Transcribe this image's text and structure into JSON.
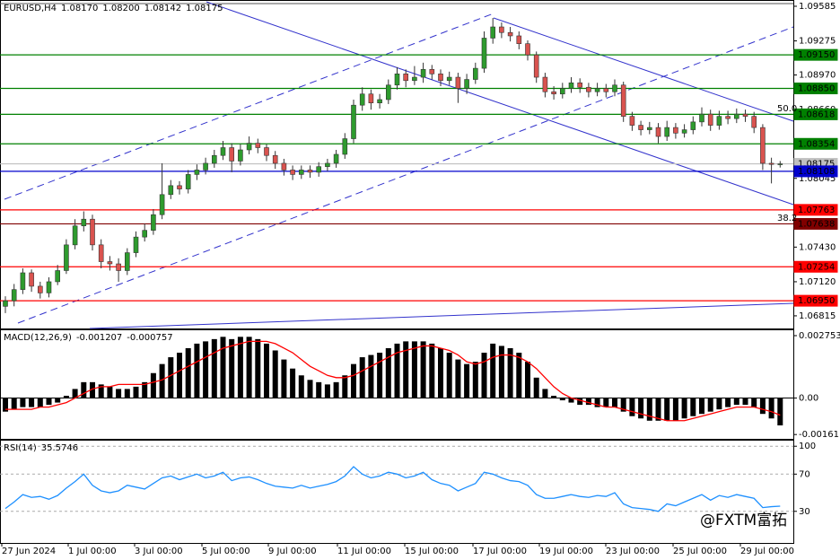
{
  "chart_data": [
    {
      "type": "candlestick",
      "title": "EURUSD,H4",
      "ohlc_labels": [
        "1.08170",
        "1.08200",
        "1.08142",
        "1.08175"
      ],
      "open": [
        1.069,
        1.0695,
        1.0705,
        1.072,
        1.0708,
        1.0702,
        1.0712,
        1.0722,
        1.0745,
        1.0762,
        1.0768,
        1.0745,
        1.073,
        1.0728,
        1.0722,
        1.0738,
        1.0752,
        1.0758,
        1.0772,
        1.079,
        1.0798,
        1.0795,
        1.0808,
        1.0812,
        1.0818,
        1.0825,
        1.0832,
        1.082,
        1.083,
        1.0836,
        1.0832,
        1.0825,
        1.0818,
        1.0812,
        1.0808,
        1.0812,
        1.081,
        1.0815,
        1.0818,
        1.0826,
        1.084,
        1.087,
        1.088,
        1.0872,
        1.0875,
        1.0888,
        1.0898,
        1.0892,
        1.0895,
        1.0902,
        1.0898,
        1.0892,
        1.0895,
        1.0885,
        1.0893,
        1.0903,
        1.093,
        1.094,
        1.0935,
        1.0932,
        1.0925,
        1.0915,
        1.0895,
        1.0882,
        1.088,
        1.0885,
        1.089,
        1.0886,
        1.0882,
        1.0885,
        1.0882,
        1.0888,
        1.086,
        1.0852,
        1.0848,
        1.085,
        1.0842,
        1.085,
        1.0845,
        1.0848,
        1.0855,
        1.0862,
        1.0852,
        1.086,
        1.0858,
        1.0862,
        1.086,
        1.085,
        1.0818,
        1.0817
      ],
      "high": [
        1.0699,
        1.071,
        1.0724,
        1.0723,
        1.0712,
        1.0716,
        1.0727,
        1.075,
        1.0768,
        1.0775,
        1.0772,
        1.075,
        1.0735,
        1.0733,
        1.0742,
        1.0757,
        1.0764,
        1.0777,
        1.0818,
        1.0803,
        1.0802,
        1.0812,
        1.0817,
        1.0823,
        1.083,
        1.0838,
        1.0836,
        1.0835,
        1.0842,
        1.084,
        1.0835,
        1.0829,
        1.0822,
        1.0816,
        1.0816,
        1.0816,
        1.0819,
        1.0822,
        1.083,
        1.0845,
        1.0875,
        1.0886,
        1.0884,
        1.088,
        1.0893,
        1.0904,
        1.0902,
        1.0905,
        1.0908,
        1.0906,
        1.0902,
        1.09,
        1.0899,
        1.0898,
        1.0908,
        1.0936,
        1.0948,
        1.0944,
        1.094,
        1.0936,
        1.0928,
        1.0918,
        1.0899,
        1.0887,
        1.089,
        1.0895,
        1.0894,
        1.089,
        1.089,
        1.0889,
        1.0893,
        1.0891,
        1.0864,
        1.0856,
        1.0855,
        1.0854,
        1.0856,
        1.0854,
        1.0853,
        1.086,
        1.0868,
        1.0866,
        1.0865,
        1.0865,
        1.0867,
        1.0866,
        1.0864,
        1.0853,
        1.0823,
        1.082
      ],
      "low": [
        1.0684,
        1.069,
        1.0701,
        1.0703,
        1.0697,
        1.0698,
        1.0709,
        1.0719,
        1.0741,
        1.0757,
        1.074,
        1.0724,
        1.0722,
        1.0712,
        1.0718,
        1.0734,
        1.0748,
        1.0754,
        1.0768,
        1.0786,
        1.079,
        1.0791,
        1.0803,
        1.0808,
        1.0814,
        1.0821,
        1.081,
        1.0816,
        1.0826,
        1.0827,
        1.082,
        1.0813,
        1.0807,
        1.0803,
        1.0804,
        1.0805,
        1.0806,
        1.0811,
        1.0814,
        1.0822,
        1.0836,
        1.0865,
        1.0866,
        1.0867,
        1.0871,
        1.0884,
        1.0886,
        1.0888,
        1.089,
        1.0893,
        1.0887,
        1.0888,
        1.0872,
        1.088,
        1.0889,
        1.0899,
        1.0925,
        1.093,
        1.0927,
        1.092,
        1.091,
        1.089,
        1.0877,
        1.0875,
        1.0876,
        1.0881,
        1.0881,
        1.0877,
        1.0878,
        1.0877,
        1.0878,
        1.0855,
        1.0847,
        1.0843,
        1.0844,
        1.0836,
        1.0838,
        1.084,
        1.0841,
        1.0844,
        1.0851,
        1.0847,
        1.0848,
        1.0853,
        1.0854,
        1.0855,
        1.0845,
        1.0812,
        1.08,
        1.08142
      ],
      "close": [
        1.0695,
        1.0705,
        1.072,
        1.0708,
        1.0702,
        1.0712,
        1.0722,
        1.0745,
        1.0762,
        1.0768,
        1.0745,
        1.073,
        1.0728,
        1.0722,
        1.0738,
        1.0752,
        1.0758,
        1.0772,
        1.079,
        1.0798,
        1.0795,
        1.0808,
        1.0812,
        1.0818,
        1.0825,
        1.0832,
        1.082,
        1.083,
        1.0836,
        1.0832,
        1.0825,
        1.0818,
        1.0812,
        1.0808,
        1.0812,
        1.081,
        1.0815,
        1.0818,
        1.0826,
        1.084,
        1.087,
        1.088,
        1.0872,
        1.0875,
        1.0888,
        1.0898,
        1.0892,
        1.0895,
        1.0902,
        1.0898,
        1.0892,
        1.0895,
        1.0885,
        1.0893,
        1.0903,
        1.093,
        1.094,
        1.0935,
        1.0932,
        1.0925,
        1.0915,
        1.0895,
        1.0882,
        1.088,
        1.0885,
        1.089,
        1.0886,
        1.0882,
        1.0885,
        1.0882,
        1.0888,
        1.086,
        1.0852,
        1.0848,
        1.085,
        1.0842,
        1.085,
        1.0845,
        1.0848,
        1.0855,
        1.0862,
        1.0852,
        1.086,
        1.0858,
        1.0862,
        1.086,
        1.085,
        1.0818,
        1.0817,
        1.08175
      ],
      "up_color": "#2e9b2e",
      "down_color": "#d9534f",
      "ylim": [
        1.06702,
        1.09641
      ],
      "yticks": [
        1.09585,
        1.09275,
        {
          "value": 1.0897,
          "label": "1.08970"
        },
        {
          "value": 1.0866,
          "label": "1.08660"
        },
        1.08045,
        {
          "value": 1.0743,
          "label": "1.07430"
        },
        {
          "value": 1.0712,
          "label": "1.07120"
        },
        1.06815
      ],
      "levels": [
        {
          "value": 1.0915,
          "label": "1.09150",
          "color": "#008000",
          "label_color": "#ffffff"
        },
        {
          "value": 1.0885,
          "label": "1.08850",
          "color": "#008000",
          "label_color": "#ffffff"
        },
        {
          "value": 1.08618,
          "label": "1.08618",
          "color": "#008000",
          "label_color": "#ffffff"
        },
        {
          "value": 1.08354,
          "label": "1.08354",
          "color": "#008000",
          "label_color": "#ffffff"
        },
        {
          "value": 1.08175,
          "label": "1.08175",
          "color": "#c0c0c0",
          "label_color": "#000000"
        },
        {
          "value": 1.08108,
          "label": "1.08108",
          "color": "#0000cd",
          "label_color": "#ffffff"
        },
        {
          "value": 1.07763,
          "label": "1.07763",
          "color": "#ff0000",
          "label_color": "#ffffff"
        },
        {
          "value": 1.07638,
          "label": "1.07638",
          "color": "#800000",
          "label_color": "#ffffff"
        },
        {
          "value": 1.07254,
          "label": "1.07254",
          "color": "#ff0000",
          "label_color": "#ffffff"
        },
        {
          "value": 1.0695,
          "label": "1.06950",
          "color": "#ff0000",
          "label_color": "#ffffff"
        }
      ],
      "annotations": [
        "50.0",
        "38.2"
      ],
      "xtick_labels": [
        "27 Jun 2024",
        "1 Jul 00:00",
        "3 Jul 00:00",
        "5 Jul 00:00",
        "9 Jul 00:00",
        "11 Jul 00:00",
        "15 Jul 00:00",
        "17 Jul 00:00",
        "19 Jul 00:00",
        "23 Jul 00:00",
        "25 Jul 00:00",
        "29 Jul 00:00"
      ],
      "watermark": "@FXTM富拓"
    },
    {
      "type": "macd",
      "title": "MACD(12,26,9)",
      "series": [
        {
          "name": "histogram",
          "color": "#000000",
          "values": [
            -0.0006,
            -0.0005,
            -0.0004,
            -0.0004,
            -0.0004,
            -0.0003,
            -0.0002,
            0.0001,
            0.0004,
            0.0007,
            0.0007,
            0.0006,
            0.0005,
            0.0004,
            0.0004,
            0.0005,
            0.0007,
            0.0011,
            0.0015,
            0.0018,
            0.002,
            0.0022,
            0.0024,
            0.0025,
            0.0026,
            0.0027,
            0.0026,
            0.0027,
            0.0027,
            0.0026,
            0.0024,
            0.0021,
            0.0017,
            0.0013,
            0.001,
            0.0008,
            0.0007,
            0.0006,
            0.0007,
            0.001,
            0.0015,
            0.0018,
            0.0019,
            0.002,
            0.0022,
            0.0024,
            0.0025,
            0.0025,
            0.0025,
            0.0024,
            0.0022,
            0.002,
            0.0017,
            0.0015,
            0.0016,
            0.002,
            0.0024,
            0.0023,
            0.0022,
            0.002,
            0.0016,
            0.0009,
            0.0004,
            0.0001,
            -0.0001,
            -0.0002,
            -0.0003,
            -0.0003,
            -0.0004,
            -0.0004,
            -0.0004,
            -0.0006,
            -0.0008,
            -0.0009,
            -0.001,
            -0.001,
            -0.001,
            -0.001,
            -0.0009,
            -0.0008,
            -0.0007,
            -0.0006,
            -0.0005,
            -0.0004,
            -0.0003,
            -0.0003,
            -0.0004,
            -0.0007,
            -0.0009,
            -0.001207
          ]
        },
        {
          "name": "signal",
          "color": "#ff0000",
          "values": [
            -0.0005,
            -0.0005,
            -0.0005,
            -0.0005,
            -0.0004,
            -0.0004,
            -0.0003,
            -0.0002,
            0.0,
            0.0002,
            0.0004,
            0.0005,
            0.0005,
            0.0006,
            0.0006,
            0.0006,
            0.0006,
            0.0007,
            0.0008,
            0.001,
            0.0012,
            0.0014,
            0.0016,
            0.0018,
            0.002,
            0.0022,
            0.0023,
            0.0024,
            0.0025,
            0.0025,
            0.0025,
            0.0024,
            0.0022,
            0.002,
            0.0017,
            0.0014,
            0.0012,
            0.001,
            0.0009,
            0.0009,
            0.001,
            0.0012,
            0.0014,
            0.0016,
            0.0018,
            0.002,
            0.0021,
            0.0022,
            0.0023,
            0.0023,
            0.0022,
            0.0021,
            0.0019,
            0.0016,
            0.0015,
            0.0016,
            0.0018,
            0.0019,
            0.0019,
            0.0018,
            0.0016,
            0.0013,
            0.0009,
            0.0005,
            0.0002,
            0.0,
            -0.0001,
            -0.0002,
            -0.0003,
            -0.0004,
            -0.0004,
            -0.0005,
            -0.0006,
            -0.0007,
            -0.0008,
            -0.0009,
            -0.001,
            -0.001,
            -0.001,
            -0.0009,
            -0.0008,
            -0.0007,
            -0.0006,
            -0.0005,
            -0.0004,
            -0.0004,
            -0.0004,
            -0.0005,
            -0.0006,
            -0.000757
          ]
        }
      ],
      "ylim": [
        -0.00184,
        0.00303
      ],
      "yticks": [
        0.002753,
        {
          "value": 0,
          "label": "0.00"
        },
        -0.00161
      ]
    },
    {
      "type": "rsi",
      "title": "RSI(14)",
      "color": "#1e90ff",
      "values": [
        33,
        40,
        48,
        45,
        46,
        43,
        47,
        55,
        62,
        70,
        58,
        52,
        50,
        52,
        58,
        56,
        54,
        60,
        66,
        68,
        64,
        67,
        70,
        66,
        68,
        72,
        63,
        66,
        67,
        64,
        60,
        57,
        56,
        55,
        58,
        55,
        57,
        59,
        62,
        68,
        78,
        70,
        66,
        68,
        72,
        70,
        66,
        68,
        72,
        64,
        60,
        58,
        52,
        56,
        60,
        72,
        70,
        66,
        63,
        62,
        58,
        48,
        44,
        44,
        46,
        48,
        46,
        45,
        47,
        46,
        50,
        38,
        34,
        33,
        32,
        30,
        38,
        36,
        40,
        44,
        48,
        42,
        47,
        45,
        48,
        46,
        44,
        34,
        35,
        35.5746
      ],
      "ylim": [
        -4,
        106
      ],
      "yticks": [
        100,
        70,
        30
      ]
    }
  ]
}
